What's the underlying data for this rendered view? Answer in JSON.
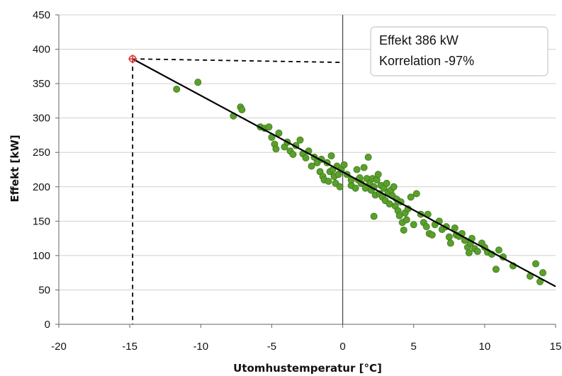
{
  "chart_data": {
    "type": "scatter",
    "title": "",
    "xlabel": "Utomhustemperatur [°C]",
    "ylabel": "Effekt [kW]",
    "xlim": [
      -20,
      15
    ],
    "ylim": [
      0,
      450
    ],
    "x_ticks": [
      "-20",
      "-15",
      "-10",
      "-5",
      "0",
      "5",
      "10",
      "15"
    ],
    "y_ticks": [
      "0",
      "50",
      "100",
      "150",
      "200",
      "250",
      "300",
      "350",
      "400",
      "450"
    ],
    "grid": true,
    "annotation": {
      "line1": "Effekt 386 kW",
      "line2": "Korrelation -97%"
    },
    "design_point": {
      "x": -14.8,
      "y": 386
    },
    "regression_line": {
      "x": [
        -14.8,
        15
      ],
      "y": [
        386,
        55
      ]
    },
    "colors": {
      "points": "#5aa02c",
      "points_edge": "#3f7a1c",
      "line": "#000000",
      "marker": "#e03a3a"
    },
    "series": [
      {
        "points": [
          [
            -11.7,
            342
          ],
          [
            -10.2,
            352
          ],
          [
            -7.7,
            303
          ],
          [
            -7.2,
            316
          ],
          [
            -7.1,
            312
          ],
          [
            -5.8,
            287
          ],
          [
            -5.5,
            285
          ],
          [
            -5.2,
            287
          ],
          [
            -5.0,
            272
          ],
          [
            -4.8,
            262
          ],
          [
            -4.7,
            255
          ],
          [
            -4.5,
            278
          ],
          [
            -4.1,
            258
          ],
          [
            -3.9,
            265
          ],
          [
            -3.7,
            252
          ],
          [
            -3.5,
            247
          ],
          [
            -3.3,
            260
          ],
          [
            -3.0,
            268
          ],
          [
            -2.8,
            248
          ],
          [
            -2.6,
            242
          ],
          [
            -2.4,
            252
          ],
          [
            -2.2,
            230
          ],
          [
            -2.0,
            243
          ],
          [
            -1.8,
            235
          ],
          [
            -1.6,
            222
          ],
          [
            -1.5,
            240
          ],
          [
            -1.4,
            215
          ],
          [
            -1.3,
            210
          ],
          [
            -1.1,
            235
          ],
          [
            -1.0,
            208
          ],
          [
            -0.9,
            222
          ],
          [
            -0.8,
            245
          ],
          [
            -0.7,
            225
          ],
          [
            -0.6,
            215
          ],
          [
            -0.5,
            205
          ],
          [
            -0.4,
            230
          ],
          [
            -0.3,
            218
          ],
          [
            -0.2,
            200
          ],
          [
            -0.1,
            225
          ],
          [
            0.1,
            232
          ],
          [
            0.3,
            218
          ],
          [
            0.6,
            202
          ],
          [
            0.9,
            198
          ],
          [
            1.0,
            225
          ],
          [
            1.1,
            210
          ],
          [
            1.2,
            213
          ],
          [
            1.3,
            205
          ],
          [
            1.5,
            228
          ],
          [
            1.6,
            198
          ],
          [
            1.7,
            212
          ],
          [
            1.8,
            243
          ],
          [
            1.9,
            205
          ],
          [
            2.0,
            195
          ],
          [
            2.1,
            212
          ],
          [
            2.2,
            200
          ],
          [
            2.3,
            188
          ],
          [
            2.4,
            210
          ],
          [
            2.5,
            218
          ],
          [
            2.6,
            190
          ],
          [
            2.7,
            202
          ],
          [
            2.8,
            185
          ],
          [
            2.9,
            198
          ],
          [
            3.0,
            180
          ],
          [
            3.1,
            205
          ],
          [
            3.2,
            192
          ],
          [
            3.3,
            175
          ],
          [
            3.4,
            195
          ],
          [
            3.5,
            187
          ],
          [
            3.6,
            200
          ],
          [
            3.7,
            172
          ],
          [
            3.8,
            182
          ],
          [
            3.9,
            165
          ],
          [
            4.0,
            158
          ],
          [
            4.1,
            178
          ],
          [
            4.2,
            148
          ],
          [
            4.3,
            137
          ],
          [
            4.4,
            162
          ],
          [
            4.5,
            152
          ],
          [
            4.6,
            168
          ],
          [
            4.8,
            185
          ],
          [
            5.0,
            145
          ],
          [
            5.2,
            190
          ],
          [
            5.5,
            160
          ],
          [
            5.7,
            148
          ],
          [
            5.9,
            142
          ],
          [
            6.0,
            160
          ],
          [
            6.1,
            132
          ],
          [
            6.3,
            130
          ],
          [
            6.5,
            145
          ],
          [
            6.8,
            150
          ],
          [
            7.0,
            138
          ],
          [
            7.3,
            142
          ],
          [
            7.5,
            127
          ],
          [
            7.6,
            118
          ],
          [
            7.9,
            140
          ],
          [
            8.0,
            130
          ],
          [
            8.2,
            128
          ],
          [
            8.4,
            132
          ],
          [
            8.6,
            122
          ],
          [
            8.8,
            112
          ],
          [
            8.9,
            104
          ],
          [
            9.0,
            118
          ],
          [
            9.1,
            125
          ],
          [
            9.3,
            110
          ],
          [
            9.5,
            106
          ],
          [
            9.8,
            118
          ],
          [
            10.0,
            112
          ],
          [
            10.2,
            105
          ],
          [
            10.5,
            102
          ],
          [
            10.8,
            80
          ],
          [
            11.0,
            108
          ],
          [
            11.3,
            98
          ],
          [
            12.0,
            85
          ],
          [
            13.2,
            70
          ],
          [
            13.6,
            88
          ],
          [
            13.9,
            62
          ],
          [
            14.1,
            75
          ],
          [
            2.2,
            157
          ],
          [
            0.6,
            210
          ]
        ]
      }
    ]
  }
}
